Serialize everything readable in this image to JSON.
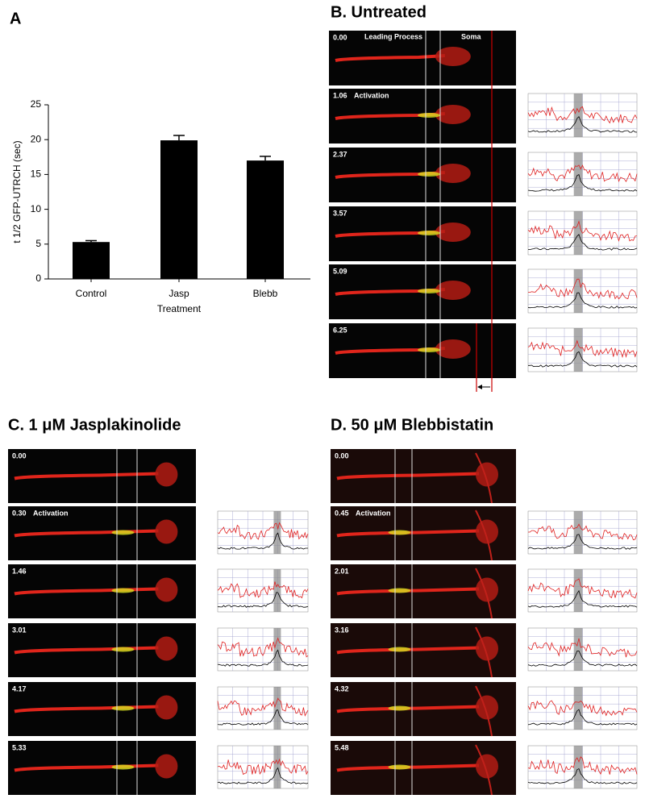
{
  "chart_data": {
    "type": "bar",
    "panel_label": "A",
    "ylabel": "t 1/2 GFP-UTRCH (sec)",
    "xlabel": "Treatment",
    "categories": [
      "Control",
      "Jasp",
      "Blebb"
    ],
    "values": [
      5.3,
      19.9,
      17.0
    ],
    "errors": [
      0.2,
      0.7,
      0.6
    ],
    "color": "#000000",
    "ylim": [
      0,
      25
    ],
    "yticks": [
      0,
      5,
      10,
      15,
      20,
      25
    ]
  },
  "panels": [
    {
      "title": "B. Untreated",
      "times": [
        "0.00",
        "1.06",
        "2.37",
        "3.57",
        "5.09",
        "6.25"
      ],
      "activation": "Activation",
      "annotations": [
        "Leading Process",
        "Soma"
      ]
    },
    {
      "title": "C. 1 μM Jasplakinolide",
      "times": [
        "0.00",
        "0.30",
        "1.46",
        "3.01",
        "4.17",
        "5.33"
      ],
      "activation": "Activation"
    },
    {
      "title": "D. 50 μM Blebbistatin",
      "times": [
        "0.00",
        "0.45",
        "2.01",
        "3.16",
        "4.32",
        "5.48"
      ],
      "activation": "Activation"
    }
  ]
}
